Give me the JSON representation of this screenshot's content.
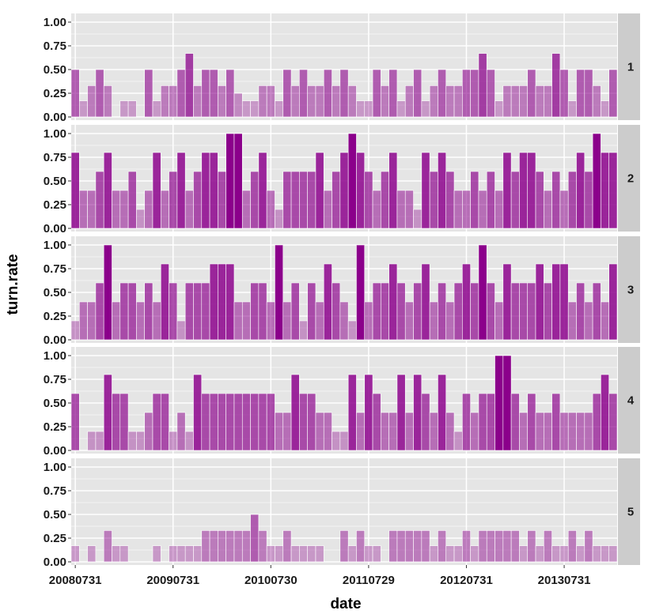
{
  "chart_data": {
    "type": "bar",
    "xlabel": "date",
    "ylabel": "turn.rate",
    "ylim": [
      0,
      1.05
    ],
    "y_ticks": [
      "0.00",
      "0.25",
      "0.50",
      "0.75",
      "1.00"
    ],
    "x_ticks": [
      {
        "label": "20080731",
        "index": 0
      },
      {
        "label": "20090731",
        "index": 12
      },
      {
        "label": "20100730",
        "index": 24
      },
      {
        "label": "20110729",
        "index": 36
      },
      {
        "label": "20120731",
        "index": 48
      },
      {
        "label": "20130731",
        "index": 60
      }
    ],
    "n_periods": 67,
    "grid": true,
    "fill_color": "#8b008b",
    "opacity_by_value": true,
    "panels": [
      {
        "label": "1",
        "values": [
          0.5,
          0.17,
          0.33,
          0.5,
          0.33,
          0,
          0.17,
          0.17,
          0,
          0.5,
          0.17,
          0.33,
          0.33,
          0.5,
          0.67,
          0.33,
          0.5,
          0.5,
          0.33,
          0.5,
          0.25,
          0.17,
          0.17,
          0.33,
          0.33,
          0.17,
          0.5,
          0.33,
          0.5,
          0.33,
          0.33,
          0.5,
          0.33,
          0.5,
          0.33,
          0.17,
          0.17,
          0.5,
          0.33,
          0.5,
          0.17,
          0.33,
          0.5,
          0.17,
          0.33,
          0.5,
          0.33,
          0.33,
          0.5,
          0.5,
          0.67,
          0.5,
          0.17,
          0.33,
          0.33,
          0.33,
          0.5,
          0.33,
          0.33,
          0.67,
          0.5,
          0.17,
          0.5,
          0.5,
          0.33,
          0.17,
          0.5
        ]
      },
      {
        "label": "2",
        "values": [
          0.8,
          0.4,
          0.4,
          0.6,
          0.8,
          0.4,
          0.4,
          0.6,
          0.2,
          0.4,
          0.8,
          0.4,
          0.6,
          0.8,
          0.4,
          0.6,
          0.8,
          0.8,
          0.6,
          1.0,
          1.0,
          0.4,
          0.6,
          0.8,
          0.4,
          0.2,
          0.6,
          0.6,
          0.6,
          0.6,
          0.8,
          0.4,
          0.6,
          0.8,
          1.0,
          0.8,
          0.6,
          0.4,
          0.6,
          0.8,
          0.4,
          0.4,
          0.2,
          0.8,
          0.6,
          0.8,
          0.6,
          0.4,
          0.4,
          0.6,
          0.4,
          0.6,
          0.4,
          0.8,
          0.6,
          0.8,
          0.8,
          0.6,
          0.4,
          0.6,
          0.4,
          0.6,
          0.8,
          0.6,
          1.0,
          0.8,
          0.8
        ]
      },
      {
        "label": "3",
        "values": [
          0.2,
          0.4,
          0.4,
          0.6,
          1.0,
          0.4,
          0.6,
          0.6,
          0.4,
          0.6,
          0.4,
          0.8,
          0.6,
          0.2,
          0.6,
          0.6,
          0.6,
          0.8,
          0.8,
          0.8,
          0.4,
          0.4,
          0.6,
          0.6,
          0.4,
          1.0,
          0.4,
          0.6,
          0.2,
          0.6,
          0.4,
          0.8,
          0.6,
          0.4,
          0.2,
          1.0,
          0.4,
          0.6,
          0.6,
          0.8,
          0.6,
          0.4,
          0.6,
          0.8,
          0.4,
          0.6,
          0.4,
          0.6,
          0.8,
          0.6,
          1.0,
          0.6,
          0.4,
          0.8,
          0.6,
          0.6,
          0.6,
          0.8,
          0.6,
          0.8,
          0.8,
          0.4,
          0.6,
          0.4,
          0.6,
          0.4,
          0.8
        ]
      },
      {
        "label": "4",
        "values": [
          0.6,
          0,
          0.2,
          0.2,
          0.8,
          0.6,
          0.6,
          0.2,
          0.2,
          0.4,
          0.6,
          0.6,
          0.2,
          0.4,
          0.2,
          0.8,
          0.6,
          0.6,
          0.6,
          0.6,
          0.6,
          0.6,
          0.6,
          0.6,
          0.6,
          0.4,
          0.4,
          0.8,
          0.6,
          0.6,
          0.4,
          0.4,
          0.2,
          0.2,
          0.8,
          0.4,
          0.8,
          0.6,
          0.4,
          0.4,
          0.8,
          0.4,
          0.8,
          0.6,
          0.4,
          0.8,
          0.4,
          0.2,
          0.6,
          0.4,
          0.6,
          0.6,
          1.0,
          1.0,
          0.6,
          0.4,
          0.6,
          0.4,
          0.4,
          0.6,
          0.4,
          0.4,
          0.4,
          0.4,
          0.6,
          0.8,
          0.6
        ]
      },
      {
        "label": "5",
        "values": [
          0.17,
          0,
          0.17,
          0,
          0.33,
          0.17,
          0.17,
          0,
          0,
          0,
          0.17,
          0,
          0.17,
          0.17,
          0.17,
          0.17,
          0.33,
          0.33,
          0.33,
          0.33,
          0.33,
          0.33,
          0.5,
          0.33,
          0.17,
          0.17,
          0.33,
          0.17,
          0.17,
          0.17,
          0.17,
          0,
          0,
          0.33,
          0.17,
          0.33,
          0.17,
          0.17,
          0,
          0.33,
          0.33,
          0.33,
          0.33,
          0.33,
          0.17,
          0.33,
          0.17,
          0.17,
          0.33,
          0.17,
          0.33,
          0.33,
          0.33,
          0.33,
          0.33,
          0.17,
          0.33,
          0.17,
          0.33,
          0.17,
          0.17,
          0.33,
          0.17,
          0.33,
          0.17,
          0.17,
          0.17
        ]
      }
    ]
  }
}
